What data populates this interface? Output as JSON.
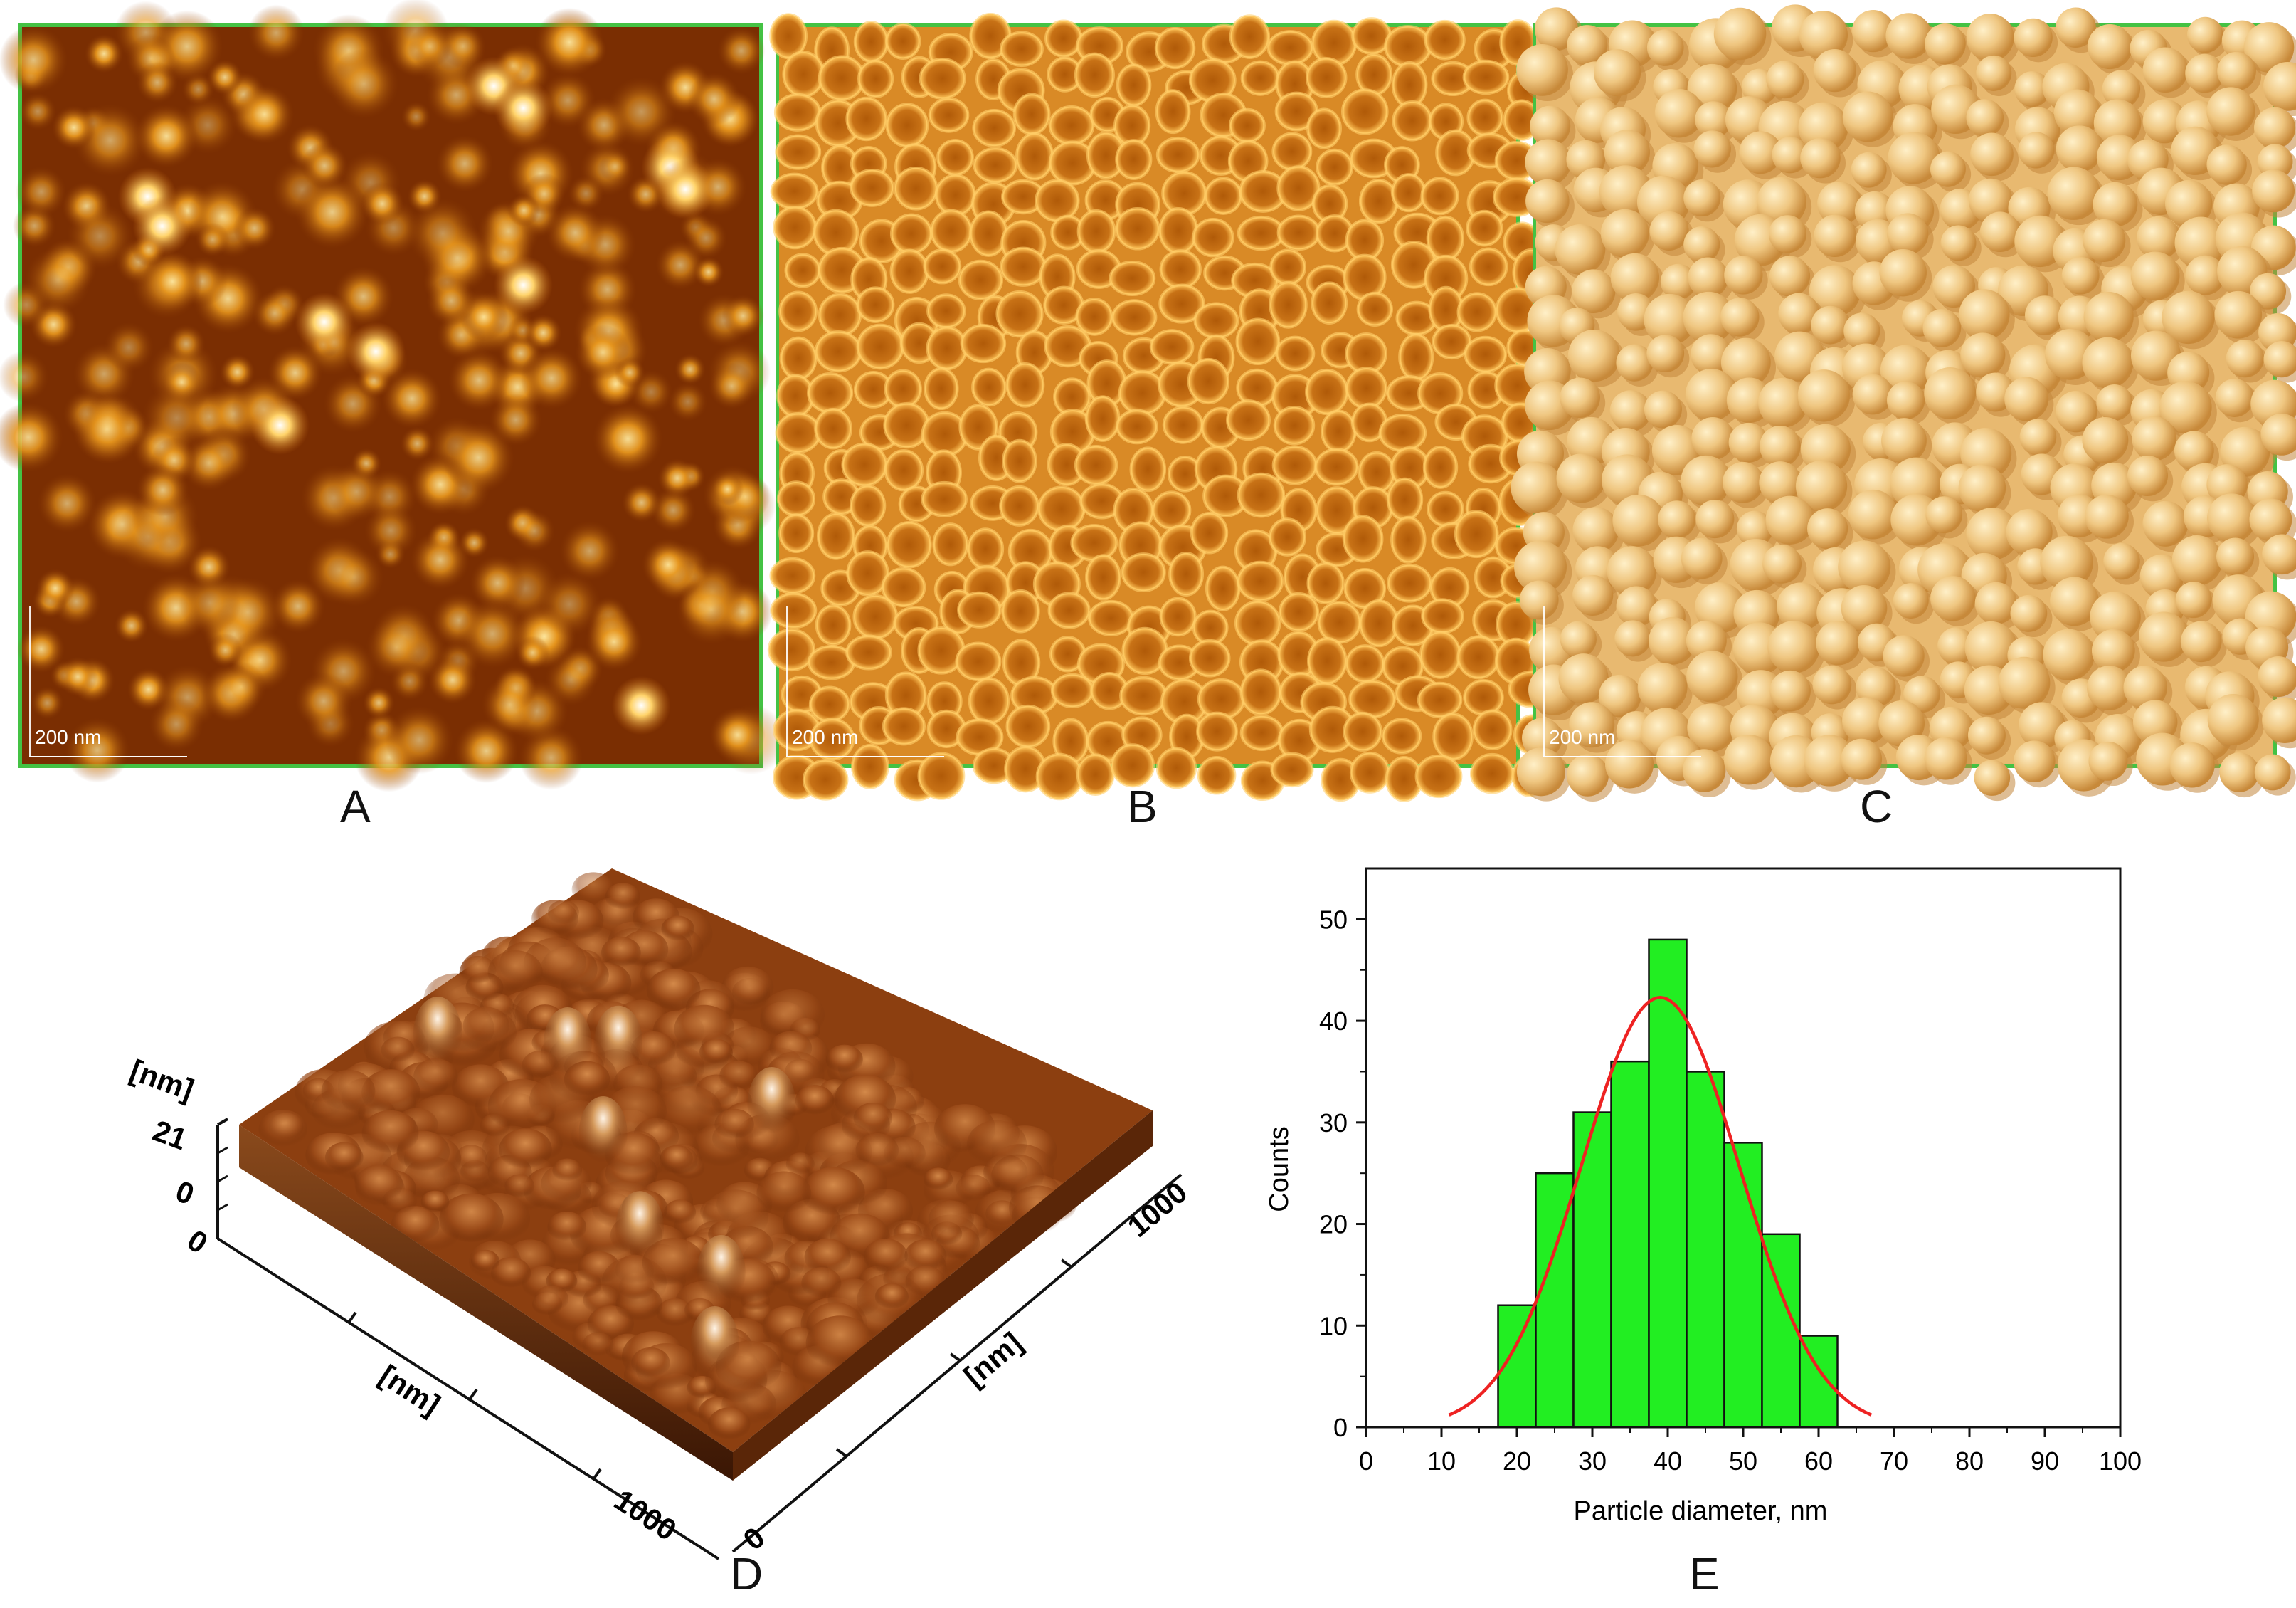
{
  "panels": [
    {
      "id": "A",
      "letter": "A",
      "scale_label": "200 nm"
    },
    {
      "id": "B",
      "letter": "B",
      "scale_label": "200 nm"
    },
    {
      "id": "C",
      "letter": "C",
      "scale_label": "200 nm"
    }
  ],
  "panel_d": {
    "letter": "D",
    "z_unit": "[nm]",
    "z_max": "21",
    "z_min": "0",
    "x_unit": "[nm]",
    "y_unit": "[nm]",
    "x_origin": "0",
    "x_end": "1000",
    "y_origin": "0",
    "y_end": "1000"
  },
  "panel_e": {
    "letter": "E"
  },
  "colors": {
    "bar_fill": "#22ee22",
    "fit_curve": "#ee2222",
    "frame": "#44c244"
  },
  "chart_data": {
    "type": "bar",
    "xlabel": "Particle diameter, nm",
    "ylabel": "Counts",
    "xlim": [
      0,
      100
    ],
    "ylim": [
      0,
      55
    ],
    "xticks": [
      "0",
      "10",
      "20",
      "30",
      "40",
      "50",
      "60",
      "70",
      "80",
      "90",
      "100"
    ],
    "yticks": [
      "0",
      "10",
      "20",
      "30",
      "40",
      "50"
    ],
    "bin_centers": [
      20,
      25,
      30,
      35,
      40,
      45,
      50,
      55,
      60
    ],
    "bin_width": 5,
    "values": [
      12,
      25,
      31,
      36,
      48,
      35,
      28,
      19,
      9
    ],
    "fit": {
      "type": "gaussian",
      "mean": 39,
      "peak": 42.3,
      "sigma": 10.5,
      "range": [
        11,
        67
      ]
    }
  }
}
